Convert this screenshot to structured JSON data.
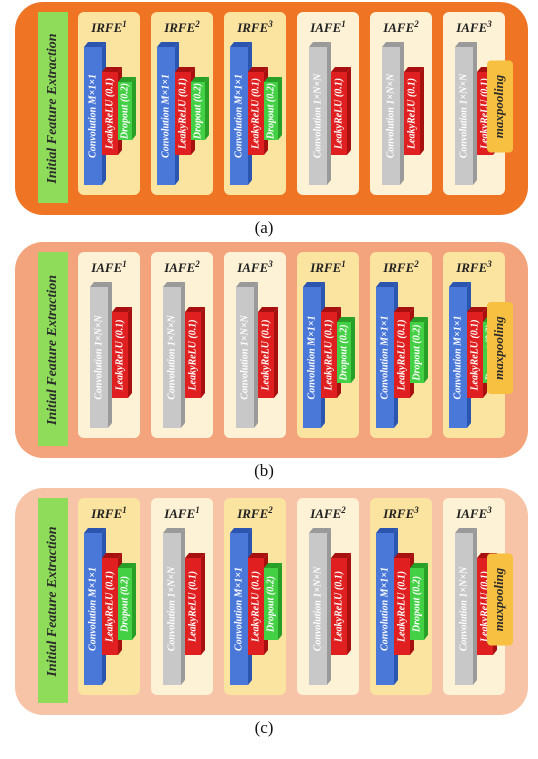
{
  "panels": [
    {
      "side_label": "Initial Feature Extraction",
      "pool": "maxpooling",
      "caption": "(a)",
      "blocks": [
        {
          "name": "IRFE",
          "sup": "1",
          "layers": [
            "Convolution M×1×1",
            "LeakyReLU (0.1)",
            "Dropout (0.2)"
          ]
        },
        {
          "name": "IRFE",
          "sup": "2",
          "layers": [
            "Convolution M×1×1",
            "LeakyReLU (0.1)",
            "Dropout (0.2)"
          ]
        },
        {
          "name": "IRFE",
          "sup": "3",
          "layers": [
            "Convolution M×1×1",
            "LeakyReLU (0.1)",
            "Dropout (0.2)"
          ]
        },
        {
          "name": "IAFE",
          "sup": "1",
          "layers": [
            "Convolution 1×N×N",
            "LeakyReLU (0.1)"
          ]
        },
        {
          "name": "IAFE",
          "sup": "2",
          "layers": [
            "Convolution 1×N×N",
            "LeakyReLU (0.1)"
          ]
        },
        {
          "name": "IAFE",
          "sup": "3",
          "layers": [
            "Convolution 1×N×N",
            "LeakyReLU (0.1)"
          ]
        }
      ]
    },
    {
      "side_label": "Initial Feature Extraction",
      "pool": "maxpooling",
      "caption": "(b)",
      "blocks": [
        {
          "name": "IAFE",
          "sup": "1",
          "layers": [
            "Convolution 1×N×N",
            "LeakyReLU (0.1)"
          ]
        },
        {
          "name": "IAFE",
          "sup": "2",
          "layers": [
            "Convolution 1×N×N",
            "LeakyReLU (0.1)"
          ]
        },
        {
          "name": "IAFE",
          "sup": "3",
          "layers": [
            "Convolution 1×N×N",
            "LeakyReLU (0.1)"
          ]
        },
        {
          "name": "IRFE",
          "sup": "1",
          "layers": [
            "Convolution M×1×1",
            "LeakyReLU (0.1)",
            "Dropout (0.2)"
          ]
        },
        {
          "name": "IRFE",
          "sup": "2",
          "layers": [
            "Convolution M×1×1",
            "LeakyReLU (0.1)",
            "Dropout (0.2)"
          ]
        },
        {
          "name": "IRFE",
          "sup": "3",
          "layers": [
            "Convolution M×1×1",
            "LeakyReLU (0.1)",
            "Dropout (0.2)"
          ]
        }
      ]
    },
    {
      "side_label": "Initial Feature Extraction",
      "pool": "maxpooling",
      "caption": "(c)",
      "blocks": [
        {
          "name": "IRFE",
          "sup": "1",
          "layers": [
            "Convolution M×1×1",
            "LeakyReLU (0.1)",
            "Dropout (0.2)"
          ]
        },
        {
          "name": "IAFE",
          "sup": "1",
          "layers": [
            "Convolution 1×N×N",
            "LeakyReLU (0.1)"
          ]
        },
        {
          "name": "IRFE",
          "sup": "2",
          "layers": [
            "Convolution M×1×1",
            "LeakyReLU (0.1)",
            "Dropout (0.2)"
          ]
        },
        {
          "name": "IAFE",
          "sup": "2",
          "layers": [
            "Convolution 1×N×N",
            "LeakyReLU (0.1)"
          ]
        },
        {
          "name": "IRFE",
          "sup": "3",
          "layers": [
            "Convolution M×1×1",
            "LeakyReLU (0.1)",
            "Dropout (0.2)"
          ]
        },
        {
          "name": "IAFE",
          "sup": "3",
          "layers": [
            "Convolution 1×N×N",
            "LeakyReLU (0.1)"
          ]
        }
      ]
    }
  ]
}
